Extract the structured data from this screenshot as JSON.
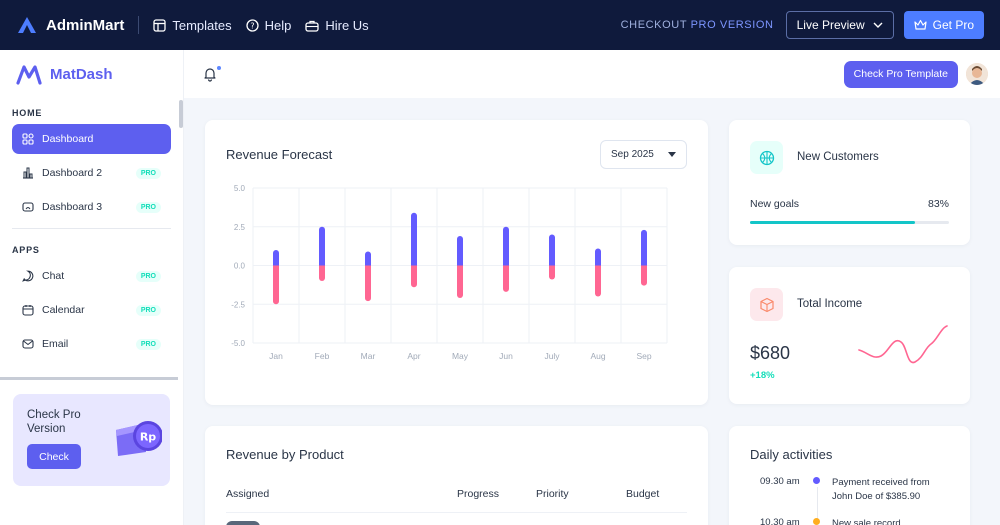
{
  "topbar": {
    "brand": "AdminMart",
    "links": [
      "Templates",
      "Help",
      "Hire Us"
    ],
    "checkout_prefix": "CHECKOUT",
    "checkout_highlight": "PRO VERSION",
    "live_preview": "Live Preview",
    "get_pro": "Get Pro"
  },
  "sidebar": {
    "brand": "MatDash",
    "home_section": "HOME",
    "home_items": [
      {
        "label": "Dashboard",
        "active": true
      },
      {
        "label": "Dashboard 2",
        "badge": "PRO"
      },
      {
        "label": "Dashboard 3",
        "badge": "PRO"
      }
    ],
    "apps_section": "APPS",
    "app_items": [
      {
        "label": "Chat",
        "badge": "PRO"
      },
      {
        "label": "Calendar",
        "badge": "PRO"
      },
      {
        "label": "Email",
        "badge": "PRO"
      }
    ],
    "promo_title": "Check Pro Version",
    "promo_button": "Check",
    "promo_coin": "Rp"
  },
  "header": {
    "cta": "Check Pro Template"
  },
  "revenue_forecast": {
    "title": "Revenue Forecast",
    "period": "Sep 2025",
    "chart_data": {
      "type": "bar",
      "categories": [
        "Jan",
        "Feb",
        "Mar",
        "Apr",
        "May",
        "Jun",
        "July",
        "Aug",
        "Sep"
      ],
      "series": [
        {
          "values": [
            1.0,
            2.5,
            0.9,
            3.4,
            1.9,
            2.5,
            2.0,
            1.1,
            2.3
          ]
        },
        {
          "values": [
            -2.5,
            -1.0,
            -2.3,
            -1.4,
            -2.1,
            -1.7,
            -0.9,
            -2.0,
            -1.3
          ]
        }
      ],
      "y_ticks": [
        "5.0",
        "2.5",
        "0.0",
        "-2.5",
        "-5.0"
      ],
      "ylim": [
        -5,
        5
      ],
      "grid": true,
      "colors": [
        "#635bff",
        "#ff6692"
      ]
    }
  },
  "new_customers": {
    "title": "New Customers",
    "goal_label": "New goals",
    "goal_pct": "83%",
    "goal_value": 0.83,
    "color": "#13c5c8"
  },
  "total_income": {
    "title": "Total Income",
    "amount": "$680",
    "change": "+18%"
  },
  "revenue_by_product": {
    "title": "Revenue by Product",
    "columns": [
      "Assigned",
      "Progress",
      "Priority",
      "Budget"
    ]
  },
  "daily_activities": {
    "title": "Daily activities",
    "items": [
      {
        "time": "09.30 am",
        "text": "Payment received from John Doe of $385.90",
        "color": "#635bff"
      },
      {
        "time": "10.30 am",
        "text": "New sale record",
        "color": "#ffae1f"
      }
    ]
  }
}
